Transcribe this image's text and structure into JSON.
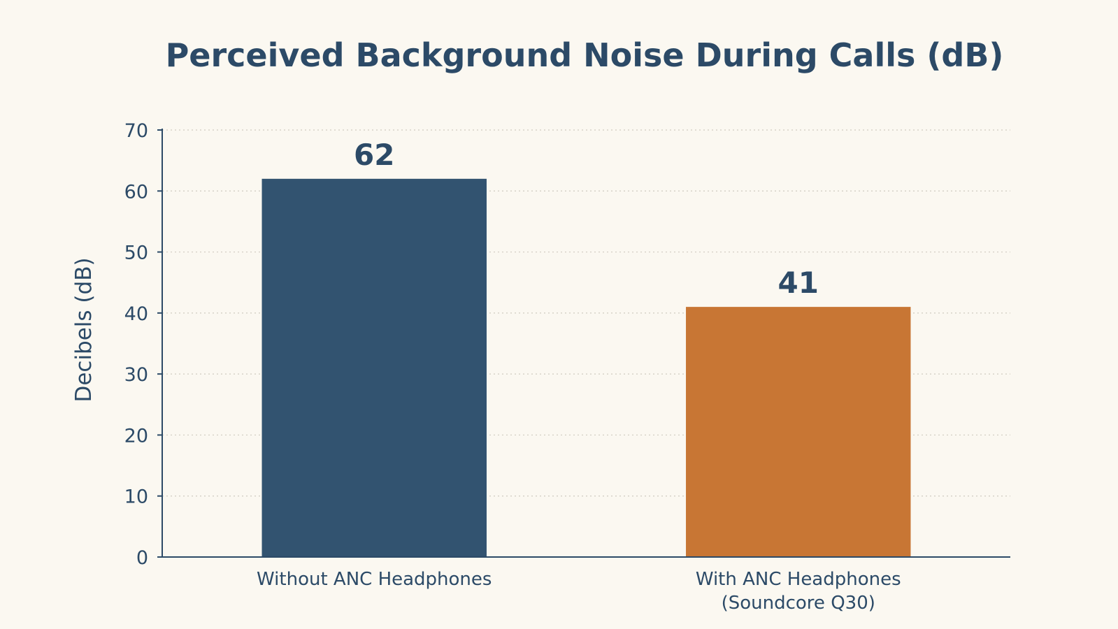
{
  "chart_data": {
    "type": "bar",
    "title": "Perceived Background Noise During Calls (dB)",
    "xlabel": "",
    "ylabel": "Decibels (dB)",
    "categories": [
      [
        "Without ANC Headphones"
      ],
      [
        "With ANC Headphones",
        "(Soundcore Q30)"
      ]
    ],
    "values": [
      62,
      41
    ],
    "data_labels": [
      "62",
      "41"
    ],
    "bar_colors": [
      "#325370",
      "#c87634"
    ],
    "ylim": [
      0,
      70
    ],
    "yticks": [
      0,
      10,
      20,
      30,
      40,
      50,
      60,
      70
    ],
    "grid": true,
    "legend": "none"
  }
}
